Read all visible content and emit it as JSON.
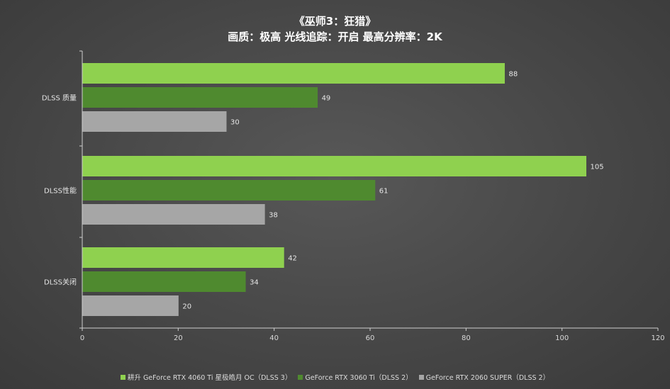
{
  "title": "《巫师3：狂猎》",
  "subtitle": "画质：极高  光线追踪：开启  最高分辨率：2K",
  "colors": {
    "series1": "#8fd14f",
    "series2": "#4f8a2f",
    "series3": "#a6a6a6",
    "axis": "#cfcfcf"
  },
  "chart_data": {
    "type": "bar",
    "orientation": "horizontal",
    "categories": [
      "DLSS 质量",
      "DLSS性能",
      "DLSS关闭"
    ],
    "series": [
      {
        "name": "耕升 GeForce RTX 4060 Ti 星极皓月 OC（DLSS 3）",
        "values": [
          88,
          105,
          42
        ]
      },
      {
        "name": "GeForce RTX 3060 Ti（DLSS 2）",
        "values": [
          49,
          61,
          34
        ]
      },
      {
        "name": "GeForce RTX 2060 SUPER（DLSS 2）",
        "values": [
          30,
          38,
          20
        ]
      }
    ],
    "xlim": [
      0,
      120
    ],
    "xticks": [
      0,
      20,
      40,
      60,
      80,
      100,
      120
    ],
    "grid": false,
    "legend_position": "bottom"
  }
}
